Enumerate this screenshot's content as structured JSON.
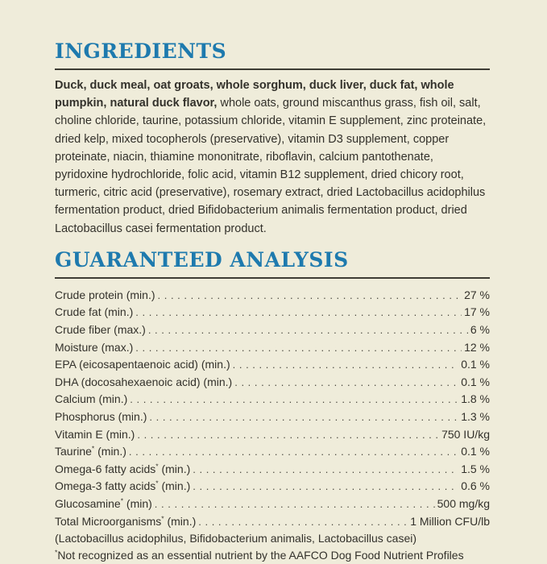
{
  "page": {
    "background_color": "#efecda",
    "accent_color": "#1e7aae",
    "rule_color": "#3e3c34",
    "text_color": "#33312b"
  },
  "ingredients": {
    "title": "INGREDIENTS",
    "lead_bold": "Duck, duck meal, oat groats, whole sorghum, duck liver, duck fat, whole pumpkin, natural duck flavor,",
    "rest": " whole oats, ground miscanthus grass, fish oil, salt, choline chloride, taurine, potassium chloride, vitamin E supplement, zinc proteinate, dried kelp, mixed tocopherols (preservative), vitamin D3 supplement, copper proteinate, niacin, thiamine mononitrate, riboflavin, calcium pantothenate, pyridoxine hydrochloride, folic acid, vitamin B12 supplement, dried chicory root, turmeric, citric acid (preservative), rosemary extract, dried Lactobacillus acidophilus fermentation product, dried Bifidobacterium animalis fermentation product, dried Lactobacillus casei fermentation product."
  },
  "analysis": {
    "title": "GUARANTEED ANALYSIS",
    "rows": [
      {
        "label": "Crude protein",
        "star": "",
        "qualifier": "(min.)",
        "value": "27 %"
      },
      {
        "label": "Crude fat",
        "star": "",
        "qualifier": "(min.)",
        "value": "17 %"
      },
      {
        "label": "Crude fiber",
        "star": "",
        "qualifier": "(max.)",
        "value": "6 %"
      },
      {
        "label": "Moisture",
        "star": "",
        "qualifier": "(max.)",
        "value": "12 %"
      },
      {
        "label": "EPA (eicosapentaenoic acid)",
        "star": "",
        "qualifier": "(min.)",
        "value": "0.1 %"
      },
      {
        "label": "DHA (docosahexaenoic acid)",
        "star": "",
        "qualifier": "(min.)",
        "value": "0.1 %"
      },
      {
        "label": "Calcium",
        "star": "",
        "qualifier": "(min.)",
        "value": "1.8 %"
      },
      {
        "label": "Phosphorus",
        "star": "",
        "qualifier": "(min.)",
        "value": "1.3 %"
      },
      {
        "label": "Vitamin E",
        "star": "",
        "qualifier": "(min.)",
        "value": "750 IU/kg"
      },
      {
        "label": "Taurine",
        "star": "*",
        "qualifier": "(min.)",
        "value": "0.1 %"
      },
      {
        "label": "Omega-6 fatty acids",
        "star": "*",
        "qualifier": "(min.)",
        "value": "1.5 %"
      },
      {
        "label": "Omega-3 fatty acids",
        "star": "*",
        "qualifier": "(min.)",
        "value": "0.6 %"
      },
      {
        "label": "Glucosamine",
        "star": "*",
        "qualifier": "(min)",
        "value": "500 mg/kg"
      },
      {
        "label": "Total Microorganisms",
        "star": "*",
        "qualifier": "(min.)",
        "value": "1 Million CFU/lb"
      }
    ],
    "subnote": "(Lactobacillus acidophilus, Bifidobacterium animalis, Lactobacillus casei)",
    "footnote_marker": "*",
    "footnote": "Not recognized as an essential nutrient by the AAFCO Dog Food Nutrient Profiles"
  }
}
